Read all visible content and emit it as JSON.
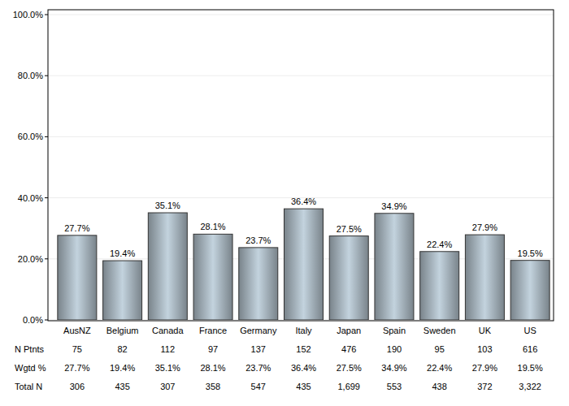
{
  "chart_data": {
    "type": "bar",
    "categories": [
      "AusNZ",
      "Belgium",
      "Canada",
      "France",
      "Germany",
      "Italy",
      "Japan",
      "Spain",
      "Sweden",
      "UK",
      "US"
    ],
    "values": [
      27.7,
      19.4,
      35.1,
      28.1,
      23.7,
      36.4,
      27.5,
      34.9,
      22.4,
      27.9,
      19.5
    ],
    "value_labels": [
      "27.7%",
      "19.4%",
      "35.1%",
      "28.1%",
      "23.7%",
      "36.4%",
      "27.5%",
      "34.9%",
      "22.4%",
      "27.9%",
      "19.5%"
    ],
    "data_labels": true,
    "color": "#c3d3de",
    "ylim": [
      0,
      100
    ],
    "yticks": [
      {
        "value": 0,
        "label": "0.0%"
      },
      {
        "value": 20,
        "label": "20.0%"
      },
      {
        "value": 40,
        "label": "40.0%"
      },
      {
        "value": 60,
        "label": "60.0%"
      },
      {
        "value": 80,
        "label": "80.0%"
      },
      {
        "value": 100,
        "label": "100.0%"
      }
    ],
    "grid": true,
    "table": {
      "rows": [
        {
          "label": "N Ptnts",
          "cells": [
            "75",
            "82",
            "112",
            "97",
            "137",
            "152",
            "476",
            "190",
            "95",
            "103",
            "616"
          ]
        },
        {
          "label": "Wgtd %",
          "cells": [
            "27.7%",
            "19.4%",
            "35.1%",
            "28.1%",
            "23.7%",
            "36.4%",
            "27.5%",
            "34.9%",
            "22.4%",
            "27.9%",
            "19.5%"
          ]
        },
        {
          "label": "Total N",
          "cells": [
            "306",
            "435",
            "307",
            "358",
            "547",
            "435",
            "1,699",
            "553",
            "438",
            "372",
            "3,322"
          ]
        }
      ]
    }
  }
}
